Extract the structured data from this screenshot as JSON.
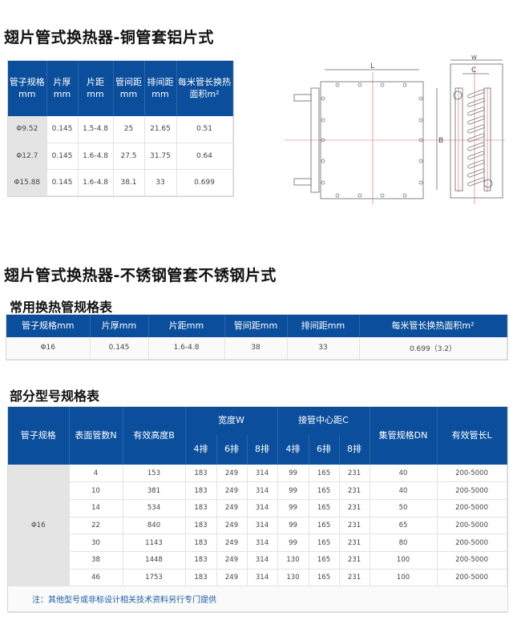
{
  "section1": {
    "title": "翅片管式换热器-铜管套铝片式",
    "table": {
      "headers": [
        "管子规格mm",
        "片厚mm",
        "片距mm",
        "管间距mm",
        "排间距mm",
        "每米管长换热面积m²"
      ],
      "rows": [
        [
          "Φ9.52",
          "0.145",
          "1.5-4.8",
          "25",
          "21.65",
          "0.51"
        ],
        [
          "Φ12.7",
          "0.145",
          "1.6-4.8",
          "27.5",
          "31.75",
          "0.64"
        ],
        [
          "Φ15.88",
          "0.145",
          "1.6-4.8",
          "38.1",
          "33",
          "0.699"
        ]
      ]
    },
    "drawing": {
      "label_L": "L",
      "label_B": "B",
      "label_W": "W",
      "label_C": "C"
    }
  },
  "section2": {
    "title": "翅片管式换热器-不锈钢管套不锈钢片式",
    "common_table": {
      "title": "常用换热管规格表",
      "headers": [
        "管子规格mm",
        "片厚mm",
        "片距mm",
        "管间距mm",
        "排间距mm",
        "每米管长换热面积m²"
      ],
      "rows": [
        [
          "Φ16",
          "0.145",
          "1.6-4.8",
          "38",
          "33",
          "0.699（3.2）"
        ]
      ]
    },
    "model_table": {
      "title": "部分型号规格表",
      "headers": {
        "tube": "管子规格",
        "n": "表面管数N",
        "b": "有效高度B",
        "w": "宽度W",
        "c": "接管中心距C",
        "dn": "集管规格DN",
        "l": "有效管长L",
        "rows4": "4排",
        "rows6": "6排",
        "rows8": "8排"
      },
      "tube_spec": "Φ16",
      "rows": [
        [
          "4",
          "153",
          "183",
          "249",
          "314",
          "99",
          "165",
          "231",
          "40",
          "200-5000"
        ],
        [
          "10",
          "381",
          "183",
          "249",
          "314",
          "99",
          "165",
          "231",
          "40",
          "200-5000"
        ],
        [
          "14",
          "534",
          "183",
          "249",
          "314",
          "99",
          "165",
          "231",
          "50",
          "200-5000"
        ],
        [
          "22",
          "840",
          "183",
          "249",
          "314",
          "99",
          "165",
          "231",
          "65",
          "200-5000"
        ],
        [
          "30",
          "1143",
          "183",
          "249",
          "314",
          "99",
          "165",
          "231",
          "80",
          "200-5000"
        ],
        [
          "38",
          "1448",
          "183",
          "249",
          "314",
          "130",
          "165",
          "231",
          "100",
          "200-5000"
        ],
        [
          "46",
          "1753",
          "183",
          "249",
          "314",
          "130",
          "165",
          "231",
          "100",
          "200-5000"
        ]
      ],
      "note": "注：其他型号或非标设计相关技术资料另行专门提供"
    }
  },
  "colors": {
    "header_blue": "#0b4f9c",
    "note_blue": "#1a5ca8",
    "spec_gray": "#e4e4e4"
  }
}
